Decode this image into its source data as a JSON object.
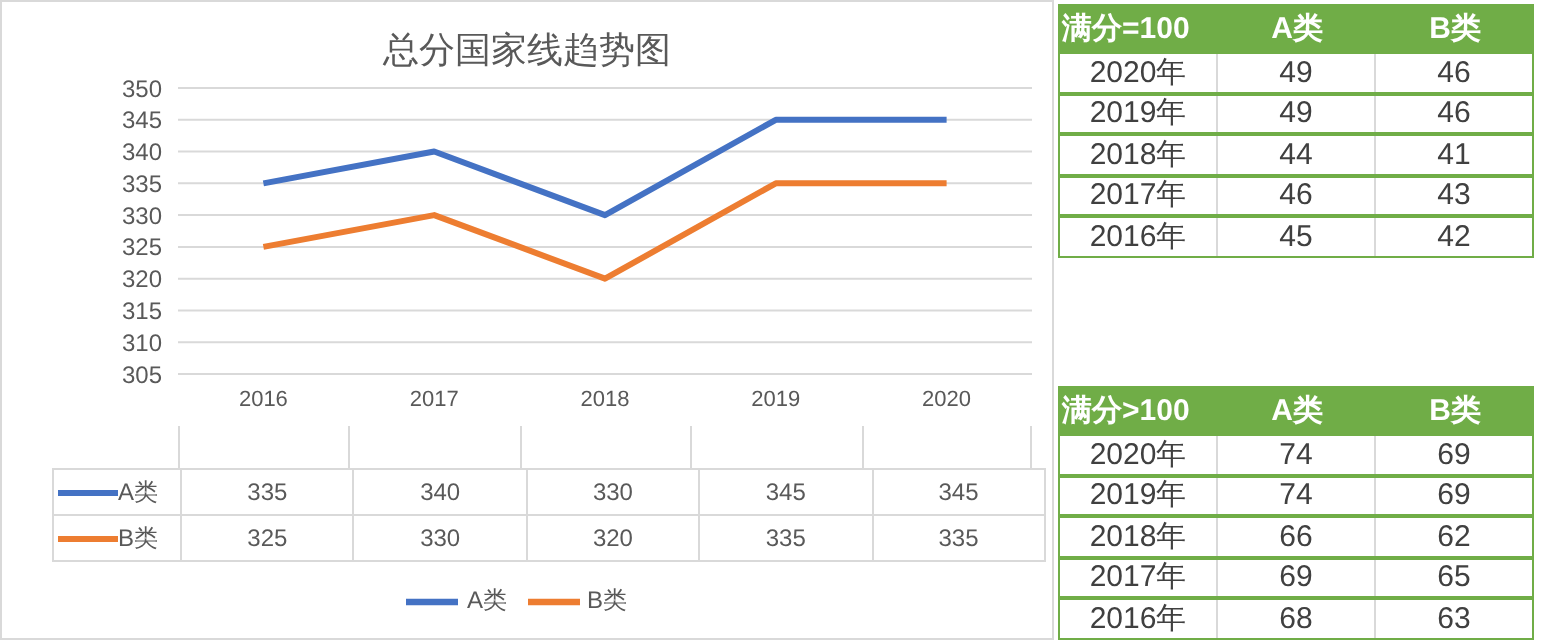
{
  "chart_data": [
    {
      "type": "line",
      "title": "总分国家线趋势图",
      "categories": [
        "2016",
        "2017",
        "2018",
        "2019",
        "2020"
      ],
      "series": [
        {
          "name": "A类",
          "color": "#4472c4",
          "values": [
            335,
            340,
            330,
            345,
            345
          ]
        },
        {
          "name": "B类",
          "color": "#ed7d31",
          "values": [
            325,
            330,
            320,
            335,
            335
          ]
        }
      ],
      "ylim": [
        305,
        350
      ],
      "yticks": [
        305,
        310,
        315,
        320,
        325,
        330,
        335,
        340,
        345,
        350
      ],
      "grid": "y",
      "legend": "bottom",
      "marker": "none",
      "line_style": "solid",
      "data_labels": true
    },
    {
      "type": "heatmap",
      "title": "满分=100",
      "categories": [
        "A类",
        "B类"
      ],
      "y_categories": [
        "2020年",
        "2019年",
        "2018年",
        "2017年",
        "2016年"
      ],
      "cells": [
        [
          49,
          46
        ],
        [
          49,
          46
        ],
        [
          44,
          41
        ],
        [
          46,
          43
        ],
        [
          45,
          42
        ]
      ],
      "data_labels": true
    },
    {
      "type": "heatmap",
      "title": "满分>100",
      "categories": [
        "A类",
        "B类"
      ],
      "y_categories": [
        "2020年",
        "2019年",
        "2018年",
        "2017年",
        "2016年"
      ],
      "cells": [
        [
          74,
          69
        ],
        [
          74,
          69
        ],
        [
          66,
          62
        ],
        [
          69,
          65
        ],
        [
          68,
          63
        ]
      ],
      "data_labels": true
    }
  ]
}
